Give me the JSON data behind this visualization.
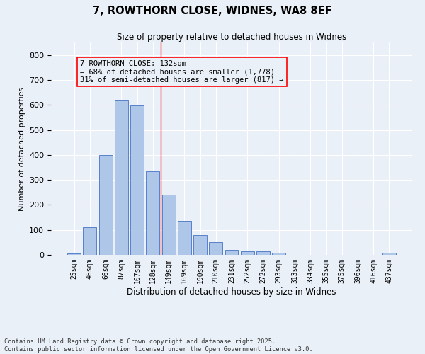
{
  "title1": "7, ROWTHORN CLOSE, WIDNES, WA8 8EF",
  "title2": "Size of property relative to detached houses in Widnes",
  "xlabel": "Distribution of detached houses by size in Widnes",
  "ylabel": "Number of detached properties",
  "bar_labels": [
    "25sqm",
    "46sqm",
    "66sqm",
    "87sqm",
    "107sqm",
    "128sqm",
    "149sqm",
    "169sqm",
    "190sqm",
    "210sqm",
    "231sqm",
    "252sqm",
    "272sqm",
    "293sqm",
    "313sqm",
    "334sqm",
    "355sqm",
    "375sqm",
    "396sqm",
    "416sqm",
    "437sqm"
  ],
  "bar_values": [
    7,
    110,
    400,
    620,
    597,
    335,
    240,
    135,
    78,
    50,
    20,
    15,
    15,
    8,
    0,
    0,
    0,
    0,
    0,
    0,
    8
  ],
  "bar_color": "#aec6e8",
  "bar_edge_color": "#4472c4",
  "vline_x": 5.5,
  "vline_color": "red",
  "annotation_text": "7 ROWTHORN CLOSE: 132sqm\n← 68% of detached houses are smaller (1,778)\n31% of semi-detached houses are larger (817) →",
  "bg_color": "#eaf0f8",
  "grid_color": "#ffffff",
  "footer": "Contains HM Land Registry data © Crown copyright and database right 2025.\nContains public sector information licensed under the Open Government Licence v3.0.",
  "ylim": [
    0,
    850
  ],
  "yticks": [
    0,
    100,
    200,
    300,
    400,
    500,
    600,
    700,
    800
  ]
}
